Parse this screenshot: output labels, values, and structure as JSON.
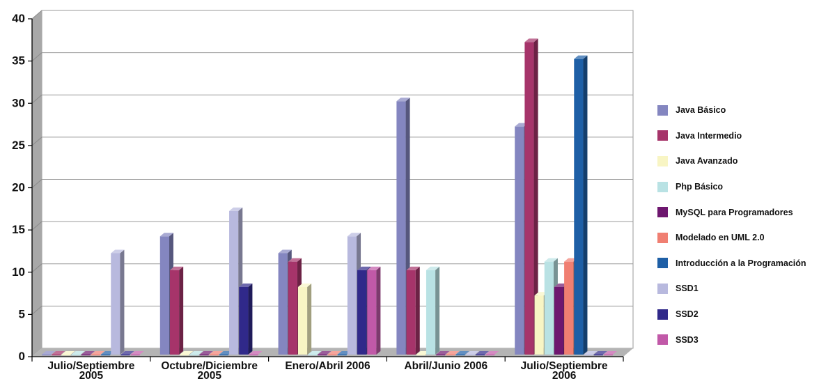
{
  "chart_data": {
    "type": "bar",
    "categories": [
      [
        "Julio/Septiembre",
        "2005"
      ],
      [
        "Octubre/Diciembre",
        "2005"
      ],
      [
        "Enero/Abril 2006"
      ],
      [
        "Abril/Junio 2006"
      ],
      [
        "Julio/Septiembre",
        "2006"
      ]
    ],
    "ylim": [
      0,
      40
    ],
    "yticks": [
      0,
      5,
      10,
      15,
      20,
      25,
      30,
      35,
      40
    ],
    "grid": true,
    "legend_position": "right",
    "series": [
      {
        "name": "Java Básico",
        "color": "#8486c0",
        "values": [
          0,
          14,
          12,
          30,
          27
        ]
      },
      {
        "name": "Java Intermedio",
        "color": "#a6346a",
        "values": [
          0,
          10,
          11,
          10,
          37
        ]
      },
      {
        "name": "Java Avanzado",
        "color": "#f8f5c4",
        "values": [
          0,
          0,
          8,
          0,
          7
        ]
      },
      {
        "name": "Php Básico",
        "color": "#b9e2e4",
        "values": [
          0,
          0,
          0,
          10,
          11
        ]
      },
      {
        "name": "MySQL para Programadores",
        "color": "#6e176f",
        "values": [
          0,
          0,
          0,
          0,
          8
        ]
      },
      {
        "name": "Modelado en UML 2.0",
        "color": "#f07f72",
        "values": [
          0,
          0,
          0,
          0,
          11
        ]
      },
      {
        "name": "Introducción a la Programación",
        "color": "#1e5fa6",
        "values": [
          0,
          0,
          0,
          0,
          35
        ]
      },
      {
        "name": "SSD1",
        "color": "#b8b9de",
        "values": [
          12,
          17,
          14,
          0,
          0
        ]
      },
      {
        "name": "SSD2",
        "color": "#30298a",
        "values": [
          0,
          8,
          10,
          0,
          0
        ]
      },
      {
        "name": "SSD3",
        "color": "#c159a8",
        "values": [
          0,
          0,
          10,
          0,
          0
        ]
      }
    ]
  }
}
